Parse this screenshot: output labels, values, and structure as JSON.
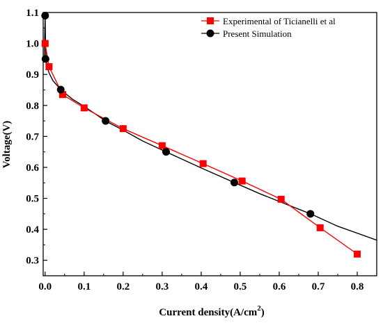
{
  "chart_data": {
    "type": "line",
    "title": "",
    "xlabel_main": "Current density(A/cm",
    "xlabel_sup": "2",
    "xlabel_close": ")",
    "ylabel": "Voltage(V)",
    "xlim": [
      -0.005,
      0.85
    ],
    "ylim": [
      0.25,
      1.1
    ],
    "x_ticks": [
      "0.0",
      "0.1",
      "0.2",
      "0.3",
      "0.4",
      "0.5",
      "0.6",
      "0.7",
      "0.8"
    ],
    "y_ticks": [
      "0.3",
      "0.4",
      "0.5",
      "0.6",
      "0.7",
      "0.8",
      "0.9",
      "1.0",
      "1.1"
    ],
    "legend_position": "top-right",
    "grid": false,
    "series": [
      {
        "name": "Experimental of Ticianelli et al",
        "color": "#ff0000",
        "marker": "square",
        "x": [
          0.0,
          0.01,
          0.045,
          0.1,
          0.2,
          0.3,
          0.405,
          0.505,
          0.605,
          0.705,
          0.8
        ],
        "y": [
          1.0,
          0.925,
          0.835,
          0.792,
          0.725,
          0.67,
          0.612,
          0.556,
          0.497,
          0.405,
          0.32
        ]
      },
      {
        "name": "Present Simulation",
        "color": "#000000",
        "marker": "circle",
        "x": [
          0.0,
          0.001,
          0.04,
          0.155,
          0.31,
          0.485,
          0.68
        ],
        "y": [
          1.09,
          0.95,
          0.851,
          0.75,
          0.65,
          0.551,
          0.45
        ],
        "curve_x": [
          -0.002,
          -0.001,
          0.0,
          0.001,
          0.002,
          0.005,
          0.01,
          0.02,
          0.04,
          0.07,
          0.1,
          0.155,
          0.2,
          0.25,
          0.31,
          0.4,
          0.485,
          0.55,
          0.6,
          0.68,
          0.75,
          0.85
        ],
        "curve_y": [
          0.95,
          1.02,
          1.09,
          1.0,
          0.95,
          0.925,
          0.905,
          0.88,
          0.851,
          0.82,
          0.797,
          0.75,
          0.72,
          0.685,
          0.65,
          0.598,
          0.551,
          0.515,
          0.49,
          0.45,
          0.41,
          0.365
        ]
      }
    ]
  }
}
